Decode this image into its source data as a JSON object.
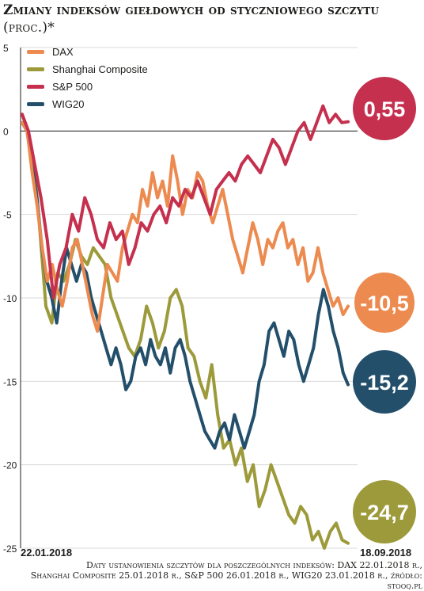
{
  "header": {
    "title": "Zmiany indeksów giełdowych od styczniowego szczytu",
    "unit": "(proc.)*"
  },
  "footnote": {
    "line1": "Daty ustanowienia szczytów dla poszczególnych indeksów: DAX 22.01.2018 r.,",
    "line2": "Shanghai Composite 25.01.2018 r., S&P 500 26.01.2018 r., WIG20 23.01.2018 r., źródło: stooq.pl"
  },
  "colors": {
    "DAX": "#ec8a4f",
    "Shanghai Composite": "#9c9a3a",
    "S&P 500": "#c5304e",
    "WIG20": "#234f6b",
    "grid": "#d9d9d9",
    "axis": "#1d1d1b"
  },
  "chart_data": {
    "type": "line",
    "title": "Zmiany indeksów giełdowych od styczniowego szczytu (proc.)*",
    "xlabel": "",
    "ylabel": "",
    "ylim": [
      -25,
      5
    ],
    "yticks": [
      5,
      0,
      -5,
      -10,
      -15,
      -20,
      -25
    ],
    "ytick_labels": [
      "5",
      "0",
      "-5",
      "-10",
      "-15",
      "-20",
      "-25"
    ],
    "x_start_label": "22.01.2018",
    "x_end_label": "18.09.2018",
    "grid": true,
    "legend_position": "top-left",
    "series": [
      {
        "name": "DAX",
        "end_label": "-10,5",
        "values": [
          0.5,
          0,
          -2.5,
          -4.5,
          -7,
          -9,
          -8,
          -9.5,
          -10.5,
          -9,
          -7,
          -6.5,
          -8,
          -9.5,
          -11,
          -12,
          -10,
          -8,
          -8.5,
          -9,
          -7,
          -6,
          -5,
          -5.5,
          -3.5,
          -4.5,
          -2.5,
          -4,
          -3,
          -4.5,
          -1.5,
          -3,
          -5,
          -3.5,
          -4,
          -2.5,
          -3,
          -4.5,
          -5.5,
          -4.5,
          -3.5,
          -5,
          -6.5,
          -7.5,
          -8.5,
          -7,
          -5.5,
          -6.5,
          -8,
          -6.5,
          -7,
          -6,
          -5.5,
          -7,
          -6.5,
          -8,
          -7,
          -9,
          -8.5,
          -7,
          -8.5,
          -9.5,
          -10.5,
          -10,
          -11,
          -10.5
        ]
      },
      {
        "name": "Shanghai Composite",
        "end_label": "-24,7",
        "values": [
          1,
          0,
          -2,
          -6,
          -10.5,
          -11.5,
          -8.5,
          -9,
          -8,
          -6.5,
          -7.5,
          -8,
          -7,
          -7.5,
          -8,
          -10,
          -11,
          -12,
          -13,
          -13.5,
          -12.5,
          -10.5,
          -11.5,
          -13,
          -12,
          -10,
          -9.5,
          -10.5,
          -13,
          -13.5,
          -15,
          -16,
          -14,
          -17,
          -19,
          -18.5,
          -20,
          -19,
          -21,
          -20,
          -22.5,
          -21.5,
          -20,
          -21,
          -22,
          -23,
          -23.5,
          -22.5,
          -23,
          -24.5,
          -24,
          -25,
          -24,
          -23.5,
          -24.5,
          -24.7
        ]
      },
      {
        "name": "S&P 500",
        "end_label": "0,55",
        "values": [
          1,
          0,
          -2,
          -4,
          -6.5,
          -10,
          -8,
          -7,
          -5,
          -6,
          -4,
          -5,
          -6.5,
          -7,
          -5.5,
          -6.5,
          -6,
          -8,
          -7,
          -5.5,
          -6,
          -5,
          -4.5,
          -5.5,
          -4,
          -4.5,
          -3.5,
          -4,
          -3,
          -4,
          -5,
          -3.5,
          -3,
          -2.5,
          -3,
          -2,
          -1.5,
          -2,
          -2.5,
          -1.5,
          -0.5,
          -1,
          -2,
          -1,
          0,
          0.5,
          -0.5,
          0.5,
          1.5,
          0.5,
          1,
          0.5,
          0.55
        ]
      },
      {
        "name": "WIG20",
        "end_label": "-15,2",
        "values": [
          0.5,
          0,
          -2,
          -4,
          -7,
          -9,
          -10,
          -11.5,
          -9,
          -7,
          -8,
          -9,
          -8,
          -8.5,
          -10,
          -11,
          -12,
          -13,
          -14,
          -13,
          -14,
          -15.5,
          -15,
          -13.5,
          -13,
          -14,
          -12.5,
          -13.5,
          -14,
          -13,
          -14.5,
          -13,
          -12.5,
          -13.5,
          -15,
          -16,
          -17,
          -18,
          -18.5,
          -19,
          -18,
          -17.5,
          -18.5,
          -17,
          -18,
          -19,
          -18,
          -17,
          -15,
          -14,
          -12,
          -11.5,
          -12.5,
          -13.5,
          -12,
          -12.5,
          -14,
          -15,
          -14,
          -13,
          -11,
          -9.5,
          -10.5,
          -12,
          -13,
          -14.5,
          -15.2
        ]
      }
    ]
  }
}
